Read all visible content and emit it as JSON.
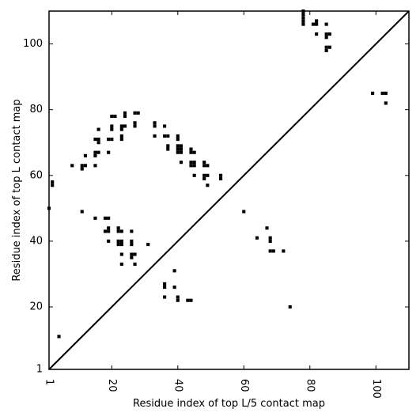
{
  "chart_data": {
    "type": "heatmap",
    "title": "",
    "xlabel": "Residue index of top L/5 contact map",
    "ylabel": "Residue index of top L contact map",
    "xlim": [
      1,
      110
    ],
    "ylim": [
      1,
      110
    ],
    "x_ticks": [
      {
        "value": 1,
        "label": "1"
      },
      {
        "value": 20,
        "label": "20"
      },
      {
        "value": 40,
        "label": "40"
      },
      {
        "value": 60,
        "label": "60"
      },
      {
        "value": 80,
        "label": "80"
      },
      {
        "value": 100,
        "label": "100"
      }
    ],
    "y_ticks": [
      {
        "value": 1,
        "label": "1"
      },
      {
        "value": 20,
        "label": "20"
      },
      {
        "value": 40,
        "label": "40"
      },
      {
        "value": 60,
        "label": "60"
      },
      {
        "value": 80,
        "label": "80"
      },
      {
        "value": 100,
        "label": "100"
      }
    ],
    "diagonal": true,
    "marker_color": "#000000",
    "points": [
      [
        1,
        50
      ],
      [
        2,
        57
      ],
      [
        2,
        58
      ],
      [
        4,
        11
      ],
      [
        8,
        63
      ],
      [
        11,
        49
      ],
      [
        11,
        62
      ],
      [
        11,
        63
      ],
      [
        12,
        63
      ],
      [
        12,
        66
      ],
      [
        15,
        47
      ],
      [
        15,
        63
      ],
      [
        15,
        66
      ],
      [
        15,
        67
      ],
      [
        15,
        71
      ],
      [
        16,
        67
      ],
      [
        16,
        70
      ],
      [
        16,
        71
      ],
      [
        16,
        74
      ],
      [
        18,
        43
      ],
      [
        18,
        47
      ],
      [
        19,
        40
      ],
      [
        19,
        43
      ],
      [
        19,
        44
      ],
      [
        19,
        47
      ],
      [
        19,
        67
      ],
      [
        19,
        71
      ],
      [
        20,
        71
      ],
      [
        20,
        74
      ],
      [
        20,
        75
      ],
      [
        20,
        78
      ],
      [
        21,
        78
      ],
      [
        22,
        39
      ],
      [
        22,
        40
      ],
      [
        22,
        43
      ],
      [
        22,
        44
      ],
      [
        23,
        33
      ],
      [
        23,
        36
      ],
      [
        23,
        39
      ],
      [
        23,
        40
      ],
      [
        23,
        43
      ],
      [
        23,
        71
      ],
      [
        23,
        72
      ],
      [
        23,
        74
      ],
      [
        23,
        75
      ],
      [
        24,
        75
      ],
      [
        24,
        78
      ],
      [
        24,
        79
      ],
      [
        26,
        35
      ],
      [
        26,
        36
      ],
      [
        26,
        39
      ],
      [
        26,
        40
      ],
      [
        26,
        43
      ],
      [
        27,
        33
      ],
      [
        27,
        36
      ],
      [
        27,
        75
      ],
      [
        27,
        76
      ],
      [
        27,
        79
      ],
      [
        28,
        79
      ],
      [
        31,
        39
      ],
      [
        33,
        72
      ],
      [
        33,
        75
      ],
      [
        33,
        76
      ],
      [
        36,
        23
      ],
      [
        36,
        26
      ],
      [
        36,
        27
      ],
      [
        36,
        72
      ],
      [
        36,
        75
      ],
      [
        37,
        68
      ],
      [
        37,
        69
      ],
      [
        37,
        72
      ],
      [
        39,
        26
      ],
      [
        39,
        31
      ],
      [
        40,
        22
      ],
      [
        40,
        23
      ],
      [
        40,
        67
      ],
      [
        40,
        68
      ],
      [
        40,
        69
      ],
      [
        40,
        71
      ],
      [
        40,
        72
      ],
      [
        41,
        64
      ],
      [
        41,
        67
      ],
      [
        41,
        68
      ],
      [
        41,
        69
      ],
      [
        43,
        22
      ],
      [
        44,
        22
      ],
      [
        44,
        63
      ],
      [
        44,
        64
      ],
      [
        44,
        67
      ],
      [
        44,
        68
      ],
      [
        45,
        60
      ],
      [
        45,
        63
      ],
      [
        45,
        64
      ],
      [
        45,
        67
      ],
      [
        48,
        59
      ],
      [
        48,
        60
      ],
      [
        48,
        63
      ],
      [
        48,
        64
      ],
      [
        49,
        57
      ],
      [
        49,
        60
      ],
      [
        49,
        63
      ],
      [
        53,
        59
      ],
      [
        53,
        60
      ],
      [
        60,
        49
      ],
      [
        64,
        41
      ],
      [
        67,
        44
      ],
      [
        68,
        37
      ],
      [
        68,
        40
      ],
      [
        68,
        41
      ],
      [
        69,
        37
      ],
      [
        72,
        37
      ],
      [
        74,
        20
      ],
      [
        78,
        106
      ],
      [
        78,
        107
      ],
      [
        78,
        108
      ],
      [
        78,
        109
      ],
      [
        78,
        110
      ],
      [
        81,
        106
      ],
      [
        82,
        103
      ],
      [
        82,
        106
      ],
      [
        82,
        107
      ],
      [
        85,
        98
      ],
      [
        85,
        99
      ],
      [
        85,
        102
      ],
      [
        85,
        103
      ],
      [
        85,
        106
      ],
      [
        86,
        99
      ],
      [
        86,
        103
      ],
      [
        99,
        85
      ],
      [
        102,
        85
      ],
      [
        103,
        82
      ],
      [
        103,
        85
      ]
    ]
  }
}
